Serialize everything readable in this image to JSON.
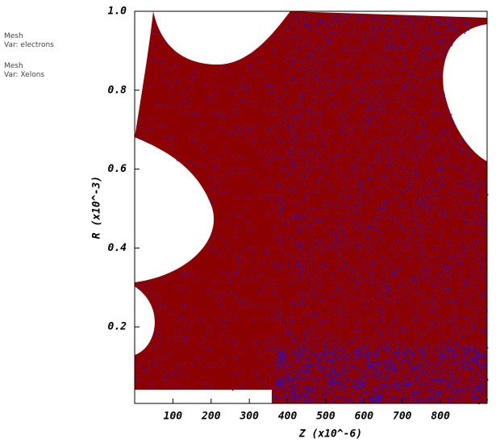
{
  "chart_data": {
    "type": "scatter",
    "x_label": "Z (x10^-6)",
    "y_label": "R (x10^-3)",
    "xlim": [
      0,
      922
    ],
    "ylim": [
      0.006,
      1.0
    ],
    "xticks": [
      100,
      200,
      300,
      400,
      500,
      600,
      700,
      800
    ],
    "yticks": [
      0.2,
      0.4,
      0.6,
      0.8,
      {
        "value": 1,
        "label": "1.0"
      }
    ],
    "series": [
      {
        "name": "Var: electrons",
        "mesh_label": "Mesh",
        "color": "#8b0000"
      },
      {
        "name": "Var: Xelons",
        "mesh_label": "Mesh",
        "color": "#1010ff"
      }
    ]
  }
}
